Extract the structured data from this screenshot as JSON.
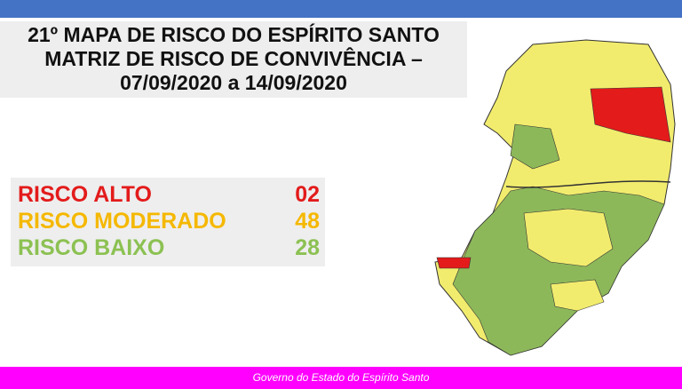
{
  "header": {
    "title": [
      "21º MAPA DE RISCO DO ESPÍRITO SANTO",
      "MATRIZ DE RISCO DE CONVIVÊNCIA –",
      "07/09/2020 a 14/09/2020"
    ]
  },
  "legend": [
    {
      "label": "RISCO ALTO",
      "count": "02",
      "color": "#e31b1b"
    },
    {
      "label": "RISCO MODERADO",
      "count": "48",
      "color": "#f5b800"
    },
    {
      "label": "RISCO BAIXO",
      "count": "28",
      "color": "#8cc152"
    }
  ],
  "footer": "Governo do Estado do Espírito Santo"
}
